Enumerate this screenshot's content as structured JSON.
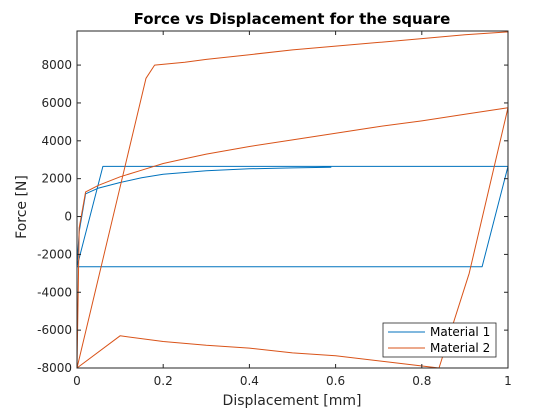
{
  "chart_data": {
    "type": "line",
    "title": "Force vs Displacement for the square",
    "xlabel": "Displacement [mm]",
    "ylabel": "Force [N]",
    "xlim": [
      0,
      1
    ],
    "ylim": [
      -8000,
      9800
    ],
    "xticks": [
      0,
      0.2,
      0.4,
      0.6,
      0.8,
      1
    ],
    "xtick_labels": [
      "0",
      "0.2",
      "0.4",
      "0.6",
      "0.8",
      "1"
    ],
    "yticks": [
      -8000,
      -6000,
      -4000,
      -2000,
      0,
      2000,
      4000,
      6000,
      8000
    ],
    "ytick_labels": [
      "-8000",
      "-6000",
      "-4000",
      "-2000",
      "0",
      "2000",
      "4000",
      "6000",
      "8000"
    ],
    "grid": false,
    "legend_position": "bottom-right",
    "series": [
      {
        "name": "Material 1",
        "color": "#0072BD",
        "points": [
          [
            0,
            -2650
          ],
          [
            0.06,
            2650
          ],
          [
            1,
            2650
          ],
          [
            0.94,
            -2650
          ],
          [
            0,
            -2650
          ],
          [
            0.005,
            -800
          ],
          [
            0.02,
            1200
          ],
          [
            0.05,
            1500
          ],
          [
            0.1,
            1800
          ],
          [
            0.15,
            2050
          ],
          [
            0.2,
            2230
          ],
          [
            0.3,
            2420
          ],
          [
            0.4,
            2520
          ],
          [
            0.5,
            2570
          ],
          [
            0.59,
            2600
          ]
        ]
      },
      {
        "name": "Material 2",
        "color": "#D95319",
        "points": [
          [
            0,
            -8000
          ],
          [
            0.16,
            7300
          ],
          [
            0.18,
            8000
          ],
          [
            0.25,
            8150
          ],
          [
            0.3,
            8300
          ],
          [
            0.4,
            8550
          ],
          [
            0.5,
            8800
          ],
          [
            0.6,
            9000
          ],
          [
            0.7,
            9200
          ],
          [
            0.8,
            9400
          ],
          [
            0.9,
            9600
          ],
          [
            1,
            9750
          ],
          [
            1,
            5750
          ],
          [
            0.91,
            -3000
          ],
          [
            0.84,
            -8000
          ],
          [
            0.6,
            -7350
          ],
          [
            0.5,
            -7200
          ],
          [
            0.4,
            -6950
          ],
          [
            0.3,
            -6800
          ],
          [
            0.2,
            -6600
          ],
          [
            0.1,
            -6300
          ],
          [
            0,
            -8000
          ],
          [
            0.005,
            -600
          ],
          [
            0.02,
            1300
          ],
          [
            0.05,
            1650
          ],
          [
            0.1,
            2100
          ],
          [
            0.15,
            2450
          ],
          [
            0.2,
            2800
          ],
          [
            0.25,
            3050
          ],
          [
            0.3,
            3300
          ],
          [
            0.4,
            3700
          ],
          [
            0.5,
            4050
          ],
          [
            0.6,
            4400
          ],
          [
            0.7,
            4750
          ],
          [
            0.8,
            5050
          ],
          [
            0.9,
            5400
          ],
          [
            1,
            5750
          ]
        ]
      }
    ]
  }
}
